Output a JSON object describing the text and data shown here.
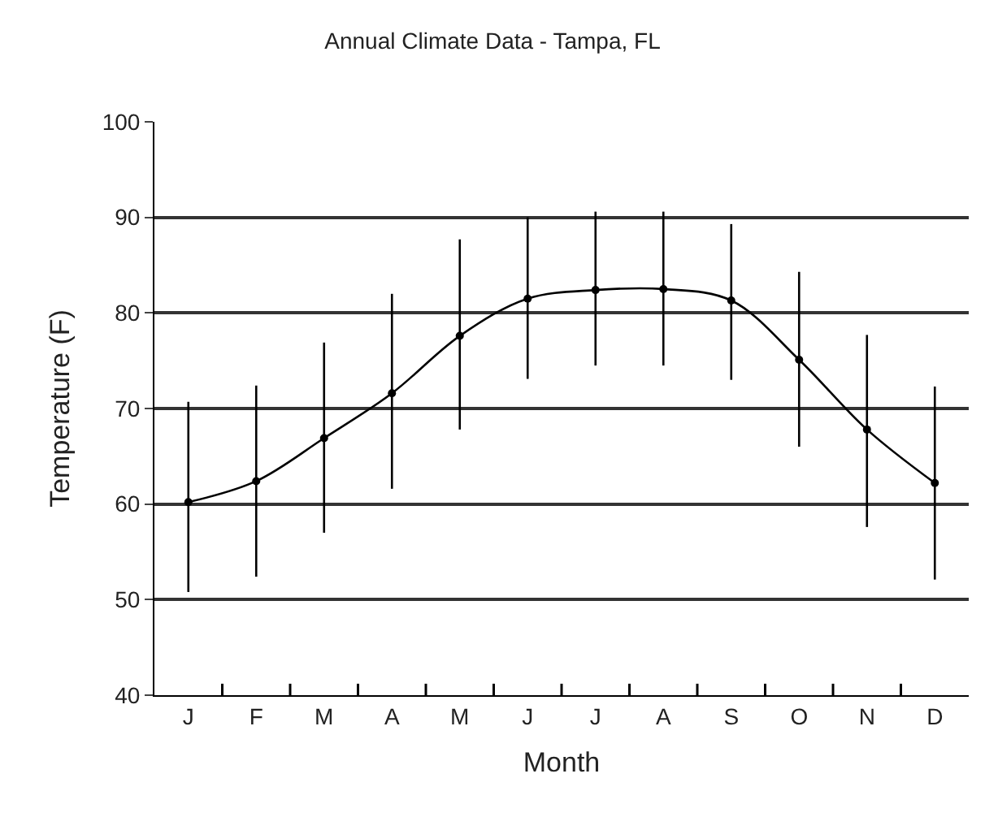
{
  "chart_data": {
    "type": "line",
    "title": "Annual Climate Data - Tampa, FL",
    "xlabel": "Month",
    "ylabel": "Temperature (F)",
    "categories": [
      "J",
      "F",
      "M",
      "A",
      "M",
      "J",
      "J",
      "A",
      "S",
      "O",
      "N",
      "D"
    ],
    "series": [
      {
        "color": "#000000",
        "values": [
          60.2,
          62.4,
          66.9,
          71.6,
          77.6,
          81.5,
          82.4,
          82.5,
          81.3,
          75.1,
          67.8,
          62.2
        ],
        "errors": [
          [
            50.8,
            70.7
          ],
          [
            52.4,
            72.4
          ],
          [
            57.0,
            76.9
          ],
          [
            61.6,
            82.0
          ],
          [
            67.8,
            87.7
          ],
          [
            73.1,
            90.0
          ],
          [
            74.5,
            90.6
          ],
          [
            74.5,
            90.6
          ],
          [
            73.0,
            89.3
          ],
          [
            66.0,
            84.3
          ],
          [
            57.6,
            77.7
          ],
          [
            52.1,
            72.3
          ]
        ]
      }
    ],
    "ylim": [
      40,
      100
    ],
    "yticks": [
      40,
      50,
      60,
      70,
      80,
      90,
      100
    ],
    "grid": "y",
    "legend": false,
    "marker": "circle",
    "line_style": "solid"
  }
}
